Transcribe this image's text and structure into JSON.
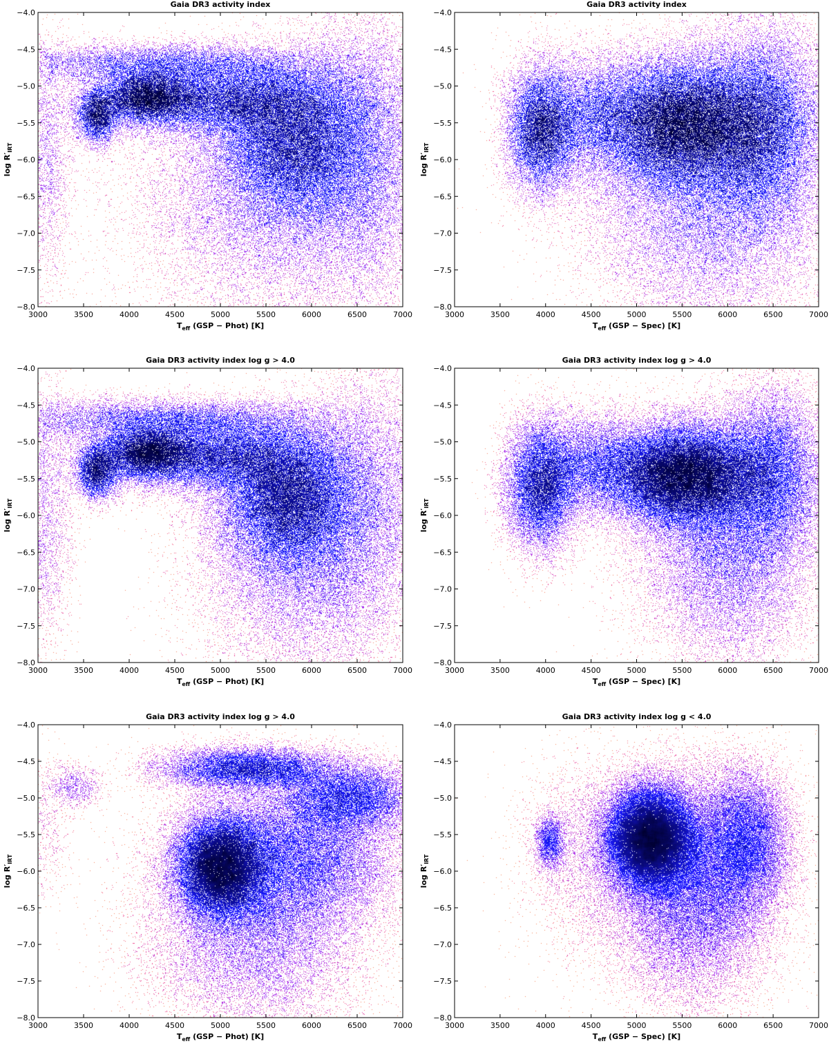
{
  "panels": [
    {
      "title": "Gaia DR3 activity index",
      "xlabel_main": "T",
      "xlabel_sub": "eff",
      "xlabel_rest": " (GSP − Phot) [K]",
      "ylabel_main": "log R′",
      "ylabel_sub": "IRT",
      "chart_data": {
        "type": "scatter",
        "xlim": [
          3000,
          7000
        ],
        "ylim": [
          -8.0,
          -4.0
        ],
        "xticks": [
          "3000",
          "3500",
          "4000",
          "4500",
          "5000",
          "5500",
          "6000",
          "6500",
          "7000"
        ],
        "yticks": [
          "-4.0",
          "-4.5",
          "-5.0",
          "-5.5",
          "-6.0",
          "-6.5",
          "-7.0",
          "-7.5",
          "-8.0"
        ],
        "colormap": [
          "#f8b62a",
          "#f04a8c",
          "#a020f0",
          "#1a1aff",
          "#000030"
        ],
        "clusters": [
          {
            "x": 5800,
            "y": -5.8,
            "sx": 450,
            "sy": 0.55,
            "w": 6
          },
          {
            "x": 5600,
            "y": -6.6,
            "sx": 800,
            "sy": 0.9,
            "w": 4
          },
          {
            "x": 5000,
            "y": -5.2,
            "sx": 700,
            "sy": 0.25,
            "w": 4
          },
          {
            "x": 4200,
            "y": -5.15,
            "sx": 250,
            "sy": 0.18,
            "w": 2
          },
          {
            "x": 3650,
            "y": -5.4,
            "sx": 120,
            "sy": 0.2,
            "w": 1
          },
          {
            "x": 4400,
            "y": -4.7,
            "sx": 900,
            "sy": 0.15,
            "w": 2
          },
          {
            "x": 6600,
            "y": -5.8,
            "sx": 400,
            "sy": 1.0,
            "w": 3
          },
          {
            "x": 3100,
            "y": -6.0,
            "sx": 150,
            "sy": 0.9,
            "w": 0.6
          }
        ]
      }
    },
    {
      "title": "Gaia DR3 activity index",
      "xlabel_main": "T",
      "xlabel_sub": "eff",
      "xlabel_rest": " (GSP − Spec) [K]",
      "ylabel_main": "log R′",
      "ylabel_sub": "IRT",
      "chart_data": {
        "type": "scatter",
        "xlim": [
          3000,
          7000
        ],
        "ylim": [
          -8.0,
          -4.0
        ],
        "xticks": [
          "3000",
          "3500",
          "4000",
          "4500",
          "5000",
          "5500",
          "6000",
          "6500",
          "7000"
        ],
        "yticks": [
          "-4.0",
          "-4.5",
          "-5.0",
          "-5.5",
          "-6.0",
          "-6.5",
          "-7.0",
          "-7.5",
          "-8.0"
        ],
        "colormap": [
          "#f8b62a",
          "#f04a8c",
          "#a020f0",
          "#1a1aff",
          "#000030"
        ],
        "clusters": [
          {
            "x": 5500,
            "y": -5.5,
            "sx": 500,
            "sy": 0.45,
            "w": 6
          },
          {
            "x": 5800,
            "y": -6.5,
            "sx": 700,
            "sy": 0.9,
            "w": 4
          },
          {
            "x": 3950,
            "y": -5.6,
            "sx": 200,
            "sy": 0.45,
            "w": 2
          },
          {
            "x": 6400,
            "y": -5.5,
            "sx": 350,
            "sy": 0.7,
            "w": 3
          },
          {
            "x": 4500,
            "y": -5.4,
            "sx": 300,
            "sy": 0.4,
            "w": 1
          }
        ]
      }
    },
    {
      "title": "Gaia DR3 activity index log g > 4.0",
      "xlabel_main": "T",
      "xlabel_sub": "eff",
      "xlabel_rest": " (GSP − Phot) [K]",
      "ylabel_main": "log R′",
      "ylabel_sub": "IRT",
      "chart_data": {
        "type": "scatter",
        "xlim": [
          3000,
          7000
        ],
        "ylim": [
          -8.0,
          -4.0
        ],
        "xticks": [
          "3000",
          "3500",
          "4000",
          "4500",
          "5000",
          "5500",
          "6000",
          "6500",
          "7000"
        ],
        "yticks": [
          "-4.0",
          "-4.5",
          "-5.0",
          "-5.5",
          "-6.0",
          "-6.5",
          "-7.0",
          "-7.5",
          "-8.0"
        ],
        "colormap": [
          "#f8b62a",
          "#f04a8c",
          "#a020f0",
          "#1a1aff",
          "#000030"
        ],
        "clusters": [
          {
            "x": 5750,
            "y": -5.8,
            "sx": 400,
            "sy": 0.5,
            "w": 6
          },
          {
            "x": 5900,
            "y": -6.7,
            "sx": 600,
            "sy": 0.8,
            "w": 3
          },
          {
            "x": 4900,
            "y": -5.2,
            "sx": 650,
            "sy": 0.25,
            "w": 4
          },
          {
            "x": 4200,
            "y": -5.15,
            "sx": 250,
            "sy": 0.18,
            "w": 2
          },
          {
            "x": 3650,
            "y": -5.4,
            "sx": 120,
            "sy": 0.2,
            "w": 1
          },
          {
            "x": 4400,
            "y": -4.7,
            "sx": 900,
            "sy": 0.15,
            "w": 2
          },
          {
            "x": 6600,
            "y": -5.7,
            "sx": 400,
            "sy": 0.9,
            "w": 2
          },
          {
            "x": 3100,
            "y": -6.0,
            "sx": 150,
            "sy": 0.9,
            "w": 0.6
          }
        ]
      }
    },
    {
      "title": "Gaia DR3 activity index log g > 4.0",
      "xlabel_main": "T",
      "xlabel_sub": "eff",
      "xlabel_rest": " (GSP − Spec) [K]",
      "ylabel_main": "log R′",
      "ylabel_sub": "IRT",
      "chart_data": {
        "type": "scatter",
        "xlim": [
          3000,
          7000
        ],
        "ylim": [
          -8.0,
          -4.0
        ],
        "xticks": [
          "3000",
          "3500",
          "4000",
          "4500",
          "5000",
          "5500",
          "6000",
          "6500",
          "7000"
        ],
        "yticks": [
          "-4.0",
          "-4.5",
          "-5.0",
          "-5.5",
          "-6.0",
          "-6.5",
          "-7.0",
          "-7.5",
          "-8.0"
        ],
        "colormap": [
          "#f8b62a",
          "#f04a8c",
          "#a020f0",
          "#1a1aff",
          "#000030"
        ],
        "clusters": [
          {
            "x": 5500,
            "y": -5.45,
            "sx": 450,
            "sy": 0.35,
            "w": 6
          },
          {
            "x": 6000,
            "y": -6.4,
            "sx": 500,
            "sy": 0.8,
            "w": 3
          },
          {
            "x": 3950,
            "y": -5.6,
            "sx": 200,
            "sy": 0.45,
            "w": 2
          },
          {
            "x": 6500,
            "y": -5.4,
            "sx": 300,
            "sy": 0.6,
            "w": 2
          },
          {
            "x": 4500,
            "y": -5.3,
            "sx": 300,
            "sy": 0.35,
            "w": 1
          }
        ]
      }
    },
    {
      "title": "Gaia DR3 activity index log g > 4.0",
      "xlabel_main": "T",
      "xlabel_sub": "eff",
      "xlabel_rest": " (GSP − Phot) [K]",
      "ylabel_main": "log R′",
      "ylabel_sub": "IRT",
      "chart_data": {
        "type": "scatter",
        "xlim": [
          3000,
          7000
        ],
        "ylim": [
          -8.0,
          -4.0
        ],
        "xticks": [
          "3000",
          "3500",
          "4000",
          "4500",
          "5000",
          "5500",
          "6000",
          "6500",
          "7000"
        ],
        "yticks": [
          "-4.0",
          "-4.5",
          "-5.0",
          "-5.5",
          "-6.0",
          "-6.5",
          "-7.0",
          "-7.5",
          "-8.0"
        ],
        "colormap": [
          "#f8b62a",
          "#f04a8c",
          "#a020f0",
          "#1a1aff",
          "#000030"
        ],
        "clusters": [
          {
            "x": 5000,
            "y": -5.95,
            "sx": 250,
            "sy": 0.35,
            "w": 5
          },
          {
            "x": 5800,
            "y": -5.8,
            "sx": 600,
            "sy": 0.5,
            "w": 4
          },
          {
            "x": 5400,
            "y": -6.8,
            "sx": 600,
            "sy": 0.7,
            "w": 3
          },
          {
            "x": 5300,
            "y": -4.6,
            "sx": 500,
            "sy": 0.15,
            "w": 2
          },
          {
            "x": 6400,
            "y": -5.0,
            "sx": 400,
            "sy": 0.25,
            "w": 2
          },
          {
            "x": 3400,
            "y": -4.85,
            "sx": 150,
            "sy": 0.15,
            "w": 0.15
          },
          {
            "x": 3100,
            "y": -5.4,
            "sx": 150,
            "sy": 0.5,
            "w": 0.1
          }
        ]
      }
    },
    {
      "title": "Gaia DR3 activity index log g < 4.0",
      "xlabel_main": "T",
      "xlabel_sub": "eff",
      "xlabel_rest": " (GSP − Spec) [K]",
      "ylabel_main": "log R′",
      "ylabel_sub": "IRT",
      "chart_data": {
        "type": "scatter",
        "xlim": [
          3000,
          7000
        ],
        "ylim": [
          -8.0,
          -4.0
        ],
        "xticks": [
          "3000",
          "3500",
          "4000",
          "4500",
          "5000",
          "5500",
          "6000",
          "6500",
          "7000"
        ],
        "yticks": [
          "-4.0",
          "-4.5",
          "-5.0",
          "-5.5",
          "-6.0",
          "-6.5",
          "-7.0",
          "-7.5",
          "-8.0"
        ],
        "colormap": [
          "#f8b62a",
          "#f04a8c",
          "#a020f0",
          "#1a1aff",
          "#000030"
        ],
        "clusters": [
          {
            "x": 5150,
            "y": -5.55,
            "sx": 250,
            "sy": 0.35,
            "w": 6
          },
          {
            "x": 5600,
            "y": -6.2,
            "sx": 450,
            "sy": 0.75,
            "w": 4
          },
          {
            "x": 6200,
            "y": -5.6,
            "sx": 250,
            "sy": 0.5,
            "w": 2
          },
          {
            "x": 4050,
            "y": -5.6,
            "sx": 80,
            "sy": 0.2,
            "w": 0.3
          },
          {
            "x": 4400,
            "y": -5.8,
            "sx": 350,
            "sy": 0.7,
            "w": 0.4
          }
        ]
      }
    }
  ]
}
